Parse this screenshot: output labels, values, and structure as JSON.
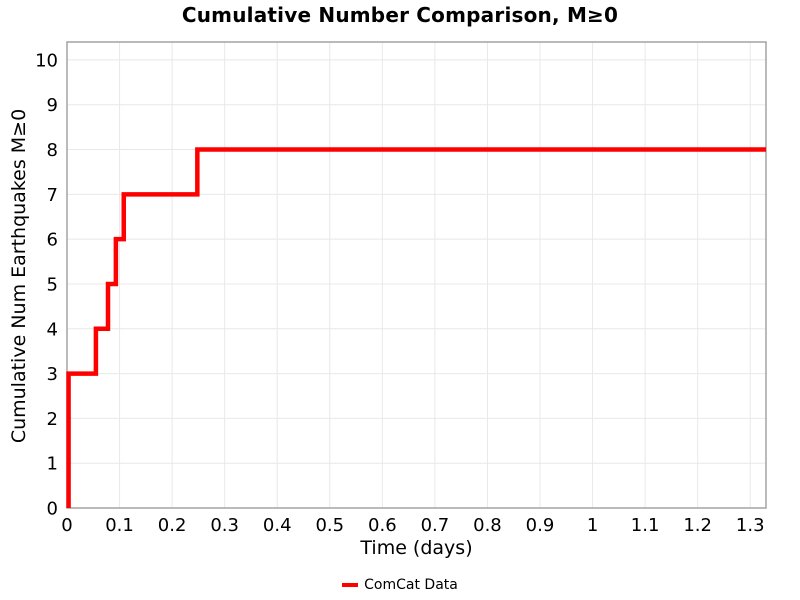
{
  "chart_data": {
    "type": "line",
    "line_style": "step-post",
    "title": "Cumulative Number Comparison, M≥0",
    "xlabel": "Time (days)",
    "ylabel": "Cumulative Num Earthquakes M≥0",
    "xlim": [
      0,
      1.33
    ],
    "ylim": [
      0,
      10.4
    ],
    "x_ticks": [
      0,
      0.1,
      0.2,
      0.3,
      0.4,
      0.5,
      0.6,
      0.7,
      0.8,
      0.9,
      1,
      1.1,
      1.2,
      1.3
    ],
    "x_tick_labels": [
      "0",
      "0.1",
      "0.2",
      "0.3",
      "0.4",
      "0.5",
      "0.6",
      "0.7",
      "0.8",
      "0.9",
      "1",
      "1.1",
      "1.2",
      "1.3"
    ],
    "y_ticks": [
      0,
      1,
      2,
      3,
      4,
      5,
      6,
      7,
      8,
      9,
      10
    ],
    "y_tick_labels": [
      "0",
      "1",
      "2",
      "3",
      "4",
      "5",
      "6",
      "7",
      "8",
      "9",
      "10"
    ],
    "grid": true,
    "grid_color": "#e8e8e8",
    "spine_color": "#a3a3a3",
    "background": "#ffffff",
    "legend": {
      "position": "bottom-center",
      "entries": [
        {
          "label": "ComCat Data",
          "color": "#ff0000"
        }
      ]
    },
    "series": [
      {
        "name": "ComCat Data",
        "color": "#ff0000",
        "line_width": 4.5,
        "points": [
          [
            0.003,
            0
          ],
          [
            0.003,
            3
          ],
          [
            0.055,
            3
          ],
          [
            0.055,
            4
          ],
          [
            0.078,
            4
          ],
          [
            0.078,
            5
          ],
          [
            0.093,
            5
          ],
          [
            0.093,
            6
          ],
          [
            0.108,
            6
          ],
          [
            0.108,
            7
          ],
          [
            0.248,
            7
          ],
          [
            0.248,
            8
          ],
          [
            1.33,
            8
          ]
        ]
      }
    ]
  }
}
